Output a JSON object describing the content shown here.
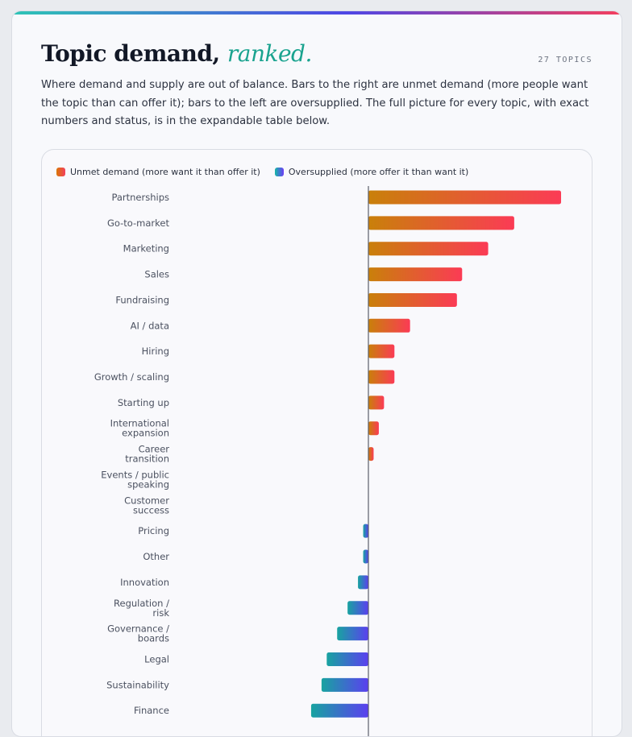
{
  "header": {
    "title_main": "Topic demand,",
    "title_accent": "ranked.",
    "topic_count": "27 TOPICS",
    "description": "Where demand and supply are out of balance. Bars to the right are unmet demand (more people want the topic than can offer it); bars to the left are oversupplied. The full picture for every topic, with exact numbers and status, is in the expandable table below."
  },
  "legend": {
    "unmet_label": "Unmet demand (more want it than offer it)",
    "over_label": "Oversupplied (more offer it than want it)"
  },
  "colors": {
    "accent": "#1aa38f",
    "unmet_start": "#c9800a",
    "unmet_end": "#fb3b55",
    "over_start": "#18a3a0",
    "over_end": "#5b3ff0",
    "axis": "#5b5f6a"
  },
  "chart_data": {
    "type": "bar",
    "orientation": "horizontal",
    "series": [
      {
        "name": "Unmet demand (more want it than offer it)",
        "sign": "positive"
      },
      {
        "name": "Oversupplied (more offer it than want it)",
        "sign": "negative"
      }
    ],
    "categories": [
      [
        "Partnerships"
      ],
      [
        "Go-to-market"
      ],
      [
        "Marketing"
      ],
      [
        "Sales"
      ],
      [
        "Fundraising"
      ],
      [
        "AI / data"
      ],
      [
        "Hiring"
      ],
      [
        "Growth / scaling"
      ],
      [
        "Starting up"
      ],
      [
        "International",
        "expansion"
      ],
      [
        "Career",
        "transition"
      ],
      [
        "Events / public",
        "speaking"
      ],
      [
        "Customer",
        "success"
      ],
      [
        "Pricing"
      ],
      [
        "Other"
      ],
      [
        "Innovation"
      ],
      [
        "Regulation /",
        "risk"
      ],
      [
        "Governance /",
        "boards"
      ],
      [
        "Legal"
      ],
      [
        "Sustainability"
      ],
      [
        "Finance"
      ]
    ],
    "values": [
      37,
      28,
      23,
      18,
      17,
      8,
      5,
      5,
      3,
      2,
      1,
      0,
      0,
      -1,
      -1,
      -2,
      -4,
      -6,
      -8,
      -9,
      -11
    ],
    "xlim": [
      -12,
      37
    ]
  }
}
